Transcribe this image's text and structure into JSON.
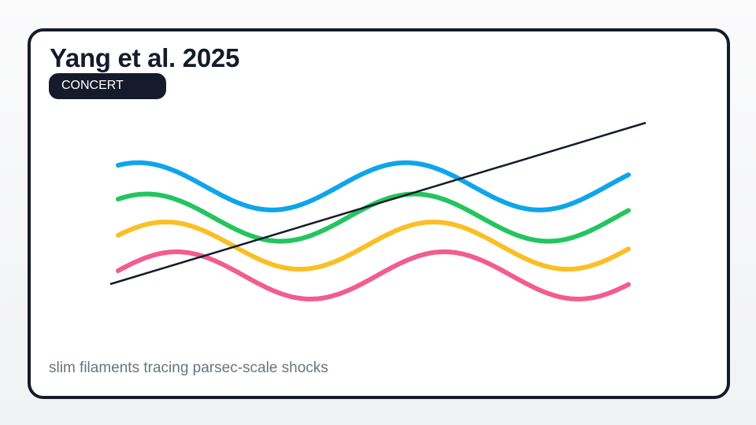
{
  "card": {
    "title": "Yang et al. 2025",
    "badge": "CONCERT",
    "caption": "slim filaments tracing parsec-scale shocks"
  },
  "figure": {
    "waves": [
      {
        "name": "cyan-wave",
        "color": "#0ea5e9"
      },
      {
        "name": "green-wave",
        "color": "#22c55e"
      },
      {
        "name": "amber-wave",
        "color": "#fbbf24"
      },
      {
        "name": "pink-wave",
        "color": "#f25c8f"
      }
    ],
    "trend_line_color": "#151b2b"
  }
}
